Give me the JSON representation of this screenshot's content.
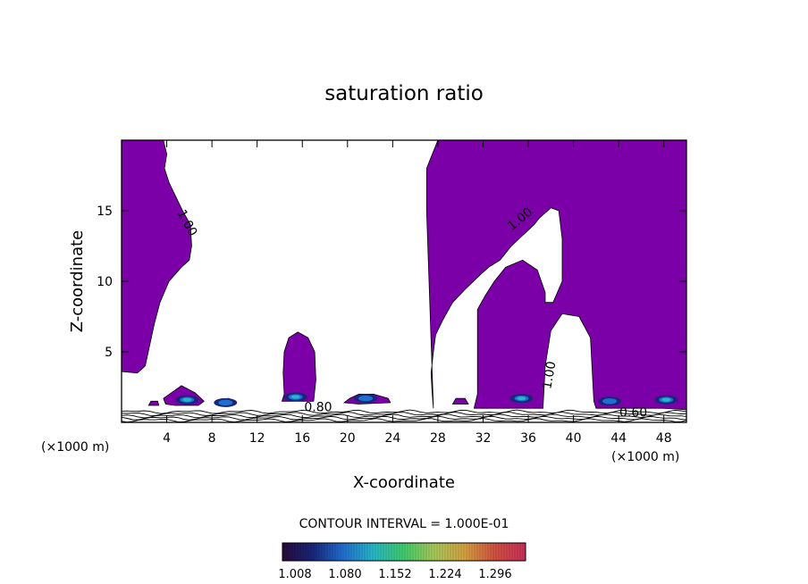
{
  "chart_data": {
    "type": "heatmap",
    "title": "saturation ratio",
    "xlabel": "X-coordinate",
    "ylabel": "Z-coordinate",
    "xlim": [
      0,
      50
    ],
    "ylim": [
      0,
      20
    ],
    "x_ticks": [
      4,
      8,
      12,
      16,
      20,
      24,
      28,
      32,
      36,
      40,
      44,
      48
    ],
    "y_ticks": [
      5,
      10,
      15
    ],
    "x_unit_left": "(×1000 m)",
    "x_unit_right": "(×1000 m)",
    "contour_interval": "CONTOUR INTERVAL = 1.000E-01",
    "colorbar_labels": [
      "1.008",
      "1.080",
      "1.152",
      "1.224",
      "1.296"
    ],
    "contour_labels": [
      {
        "text": "1.00",
        "x": 5.5,
        "z": 14.0,
        "rotate": 62
      },
      {
        "text": "1.00",
        "x": 35.5,
        "z": 14.2,
        "rotate": -40
      },
      {
        "text": "1.00",
        "x": 38.2,
        "z": 3.3,
        "rotate": -80
      },
      {
        "text": "0.80",
        "x": 17.4,
        "z": 0.8,
        "rotate": 0
      },
      {
        "text": "0.60",
        "x": 45.3,
        "z": 0.4,
        "rotate": 0
      }
    ],
    "regions_supersaturated": [
      [
        [
          0,
          20
        ],
        [
          3.7,
          20
        ],
        [
          4,
          19
        ],
        [
          3.8,
          18
        ],
        [
          4.2,
          17
        ],
        [
          4.8,
          16
        ],
        [
          5.4,
          15
        ],
        [
          6.1,
          14
        ],
        [
          6.2,
          12.5
        ],
        [
          6,
          11.5
        ],
        [
          5.3,
          11
        ],
        [
          4.2,
          10
        ],
        [
          3.4,
          8.5
        ],
        [
          2.9,
          7
        ],
        [
          2.5,
          5.5
        ],
        [
          2.1,
          4
        ],
        [
          1.4,
          3.5
        ],
        [
          0,
          3.6
        ]
      ],
      [
        [
          28,
          20
        ],
        [
          50,
          20
        ],
        [
          50,
          0.9
        ],
        [
          48,
          1
        ],
        [
          42,
          1
        ],
        [
          41.8,
          1.5
        ],
        [
          41.5,
          6
        ],
        [
          40.5,
          7.5
        ],
        [
          39,
          7.7
        ],
        [
          38,
          6.5
        ],
        [
          37.5,
          4
        ],
        [
          37.3,
          1
        ],
        [
          31.2,
          1
        ],
        [
          31.5,
          2
        ],
        [
          31.5,
          8
        ],
        [
          32.2,
          9
        ],
        [
          33,
          10
        ],
        [
          34,
          11
        ],
        [
          35.5,
          11.5
        ],
        [
          36.8,
          10.8
        ],
        [
          37.5,
          9.2
        ],
        [
          37.5,
          8.5
        ],
        [
          38.2,
          8.5
        ],
        [
          39,
          10
        ],
        [
          39,
          13
        ],
        [
          38.7,
          15
        ],
        [
          38,
          15.2
        ],
        [
          37,
          14.5
        ],
        [
          36.5,
          14
        ],
        [
          34.5,
          12.5
        ],
        [
          33.5,
          11.5
        ],
        [
          32.5,
          11
        ],
        [
          31.8,
          10.5
        ],
        [
          30.5,
          9.5
        ],
        [
          29.3,
          8.5
        ],
        [
          28.4,
          7.2
        ],
        [
          27.8,
          6.2
        ],
        [
          27.6,
          5
        ],
        [
          27.4,
          3.5
        ],
        [
          27.5,
          2
        ],
        [
          27.6,
          1
        ],
        [
          27,
          15
        ],
        [
          27,
          18
        ]
      ],
      [
        [
          14.2,
          1.5
        ],
        [
          14.4,
          2
        ],
        [
          14.3,
          3.5
        ],
        [
          14.4,
          5
        ],
        [
          14.8,
          6
        ],
        [
          15.6,
          6.4
        ],
        [
          16.5,
          6
        ],
        [
          17.1,
          5
        ],
        [
          17.2,
          3
        ],
        [
          17,
          1.5
        ]
      ],
      [
        [
          3.7,
          1.7
        ],
        [
          3.9,
          1.3
        ],
        [
          4.7,
          1.2
        ],
        [
          6.8,
          1.2
        ],
        [
          7.3,
          1.5
        ],
        [
          6.5,
          2.1
        ],
        [
          5.3,
          2.6
        ],
        [
          4.6,
          2.2
        ]
      ],
      [
        [
          8.4,
          1.3
        ],
        [
          8.6,
          1.6
        ],
        [
          9.5,
          1.7
        ],
        [
          9.9,
          1.3
        ]
      ],
      [
        [
          19.7,
          1.4
        ],
        [
          20.2,
          1.7
        ],
        [
          21,
          2
        ],
        [
          22.3,
          2
        ],
        [
          23.6,
          1.7
        ],
        [
          23.8,
          1.4
        ],
        [
          21,
          1.3
        ]
      ],
      [
        [
          29.3,
          1.3
        ],
        [
          29.6,
          1.7
        ],
        [
          30.4,
          1.7
        ],
        [
          30.7,
          1.3
        ]
      ],
      [
        [
          2.4,
          1.2
        ],
        [
          2.6,
          1.5
        ],
        [
          3.2,
          1.5
        ],
        [
          3.3,
          1.2
        ]
      ]
    ],
    "hotspots": [
      {
        "x": 5.8,
        "z": 1.6,
        "level": 1.11
      },
      {
        "x": 9.2,
        "z": 1.4,
        "level": 1.05
      },
      {
        "x": 15.4,
        "z": 1.8,
        "level": 1.16
      },
      {
        "x": 21.6,
        "z": 1.7,
        "level": 1.06
      },
      {
        "x": 35.4,
        "z": 1.7,
        "level": 1.15
      },
      {
        "x": 43.2,
        "z": 1.5,
        "level": 1.08
      },
      {
        "x": 48.2,
        "z": 1.6,
        "level": 1.12
      }
    ],
    "colors": {
      "fill": "#7b00a8",
      "line": "#000000",
      "colorbar": [
        "#2a0a3a",
        "#18267a",
        "#1f6fd0",
        "#27b7c7",
        "#3fcc6a",
        "#a8c858",
        "#d4a040",
        "#d05040",
        "#c8305a"
      ]
    }
  }
}
